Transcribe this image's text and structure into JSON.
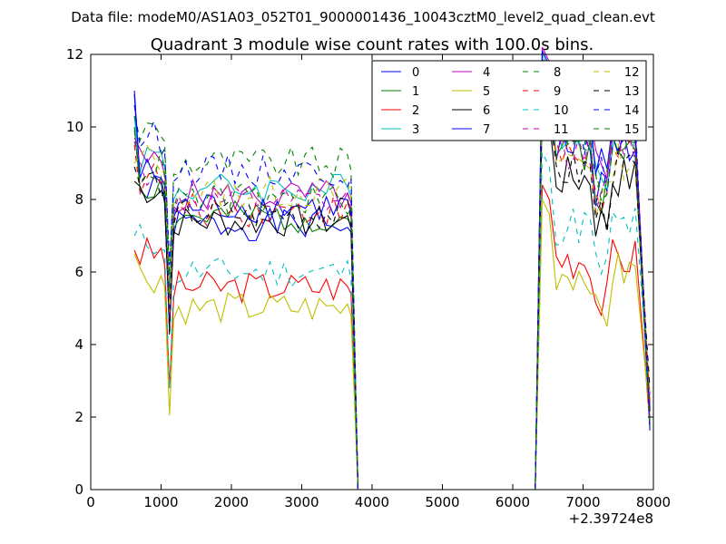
{
  "header": {
    "suptitle": "Data file: modeM0/AS1A03_052T01_9000001436_10043cztM0_level2_quad_clean.evt"
  },
  "chart_data": {
    "type": "line",
    "title": "Quadrant 3 module wise count rates with 100.0s bins.",
    "xlabel": "",
    "ylabel": "",
    "x_offset_label": "+2.39724e8",
    "xlim": [
      0,
      8000
    ],
    "ylim": [
      0,
      12
    ],
    "xticks": [
      0,
      1000,
      2000,
      3000,
      4000,
      5000,
      6000,
      7000,
      8000
    ],
    "yticks": [
      0,
      2,
      4,
      6,
      8,
      10,
      12
    ],
    "grid": false,
    "legend_position": "top-right",
    "legend_columns": 4,
    "series": [
      {
        "name": "0",
        "color": "#0000ff",
        "dash": "solid",
        "base1": 7.3,
        "base2": 9.5,
        "start": 10.9,
        "seed": 1
      },
      {
        "name": "1",
        "color": "#008000",
        "dash": "solid",
        "base1": 7.5,
        "base2": 9.4,
        "start": 10.0,
        "seed": 2
      },
      {
        "name": "2",
        "color": "#ff0000",
        "dash": "solid",
        "base1": 5.6,
        "base2": 6.4,
        "start": 6.6,
        "seed": 3
      },
      {
        "name": "3",
        "color": "#00bfbf",
        "dash": "solid",
        "base1": 8.3,
        "base2": 10.0,
        "start": 10.3,
        "seed": 4
      },
      {
        "name": "4",
        "color": "#bf00bf",
        "dash": "solid",
        "base1": 8.1,
        "base2": 10.2,
        "start": 9.7,
        "seed": 5
      },
      {
        "name": "5",
        "color": "#bfbf00",
        "dash": "solid",
        "base1": 5.0,
        "base2": 6.0,
        "start": 6.5,
        "seed": 6
      },
      {
        "name": "6",
        "color": "#000000",
        "dash": "solid",
        "base1": 7.4,
        "base2": 8.6,
        "start": 8.5,
        "seed": 7
      },
      {
        "name": "7",
        "color": "#0000ff",
        "dash": "solid",
        "base1": 7.8,
        "base2": 10.1,
        "start": 11.0,
        "seed": 8
      },
      {
        "name": "8",
        "color": "#008000",
        "dash": "dashed",
        "base1": 9.0,
        "base2": 9.9,
        "start": 10.3,
        "seed": 9
      },
      {
        "name": "9",
        "color": "#ff0000",
        "dash": "dashed",
        "base1": 7.7,
        "base2": 9.2,
        "start": 9.5,
        "seed": 10
      },
      {
        "name": "10",
        "color": "#00bfbf",
        "dash": "dashed",
        "base1": 6.0,
        "base2": 7.3,
        "start": 7.0,
        "seed": 11
      },
      {
        "name": "11",
        "color": "#bf00bf",
        "dash": "dashed",
        "base1": 7.9,
        "base2": 9.4,
        "start": 9.6,
        "seed": 12
      },
      {
        "name": "12",
        "color": "#bfbf00",
        "dash": "dashed",
        "base1": 8.2,
        "base2": 9.1,
        "start": 9.0,
        "seed": 13
      },
      {
        "name": "13",
        "color": "#000000",
        "dash": "dashed",
        "base1": 7.6,
        "base2": 8.8,
        "start": 8.9,
        "seed": 14
      },
      {
        "name": "14",
        "color": "#0000ff",
        "dash": "dashed",
        "base1": 8.8,
        "base2": 9.8,
        "start": 10.6,
        "seed": 15
      },
      {
        "name": "15",
        "color": "#008000",
        "dash": "dashed",
        "base1": 8.0,
        "base2": 9.6,
        "start": 9.9,
        "seed": 16
      }
    ]
  }
}
